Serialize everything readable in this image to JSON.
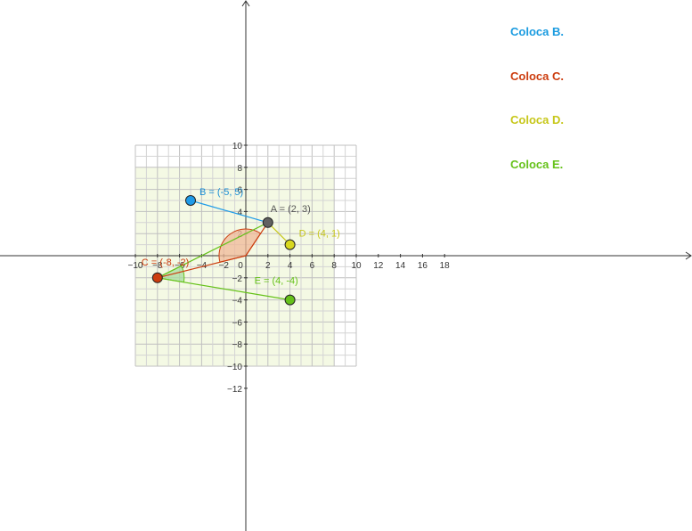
{
  "plane": {
    "x_ticks": [
      -10,
      -8,
      -6,
      -4,
      -2,
      0,
      2,
      4,
      6,
      8,
      10,
      12,
      14,
      16,
      18
    ],
    "y_ticks": [
      -12,
      -10,
      -8,
      -6,
      -4,
      -2,
      2,
      4,
      6,
      8,
      10
    ],
    "minus_sign": "−",
    "colors": {
      "grid_minor": "#d4d4d4",
      "grid_major": "#c0c0c0",
      "region_fill": "#f4f9e4",
      "axis": "#333333"
    }
  },
  "points": [
    {
      "id": "A",
      "label": "A = (2, 3)",
      "x": 2,
      "y": 3,
      "fill": "#616161",
      "label_color": "#555555"
    },
    {
      "id": "B",
      "label": "B = (-5, 5)",
      "x": -5,
      "y": 5,
      "fill": "#1e9be8",
      "label_color": "#1a8fd6"
    },
    {
      "id": "C",
      "label": "C = (-8, -2)",
      "x": -8,
      "y": -2,
      "fill": "#cc3d0f",
      "label_color": "#cc3d0f"
    },
    {
      "id": "D",
      "label": "D = (4, 1)",
      "x": 4,
      "y": 1,
      "fill": "#d8d81e",
      "label_color": "#c7c71a"
    },
    {
      "id": "E",
      "label": "E = (4, -4)",
      "x": 4,
      "y": -4,
      "fill": "#66c21a",
      "label_color": "#66c21a"
    }
  ],
  "segments": [
    {
      "from": "A",
      "to": "B",
      "color": "#1e9be8"
    },
    {
      "from": "A",
      "to": "D",
      "color": "#c7c71a"
    },
    {
      "from": "A",
      "to": "C",
      "color": "#66c21a"
    },
    {
      "from": "C",
      "to": "E",
      "color": "#66c21a"
    },
    {
      "from": "C",
      "to": "O",
      "color": "#cc3d0f"
    },
    {
      "from": "O",
      "to": "A",
      "color": "#cc3d0f"
    }
  ],
  "angles": [
    {
      "vertex": "O",
      "from": "C",
      "to": "A",
      "fill": "#f0b898",
      "stroke": "#cc3d0f"
    },
    {
      "vertex": "C",
      "from": "A",
      "to": "E",
      "fill": "#a8dca0",
      "stroke": "#66c21a"
    }
  ],
  "instructions": [
    {
      "text": "Coloca B.",
      "color": "#1a9be0"
    },
    {
      "text": "Coloca C.",
      "color": "#cc3d0f"
    },
    {
      "text": "Coloca D.",
      "color": "#c7c71a"
    },
    {
      "text": "Coloca E.",
      "color": "#66c21a"
    }
  ]
}
